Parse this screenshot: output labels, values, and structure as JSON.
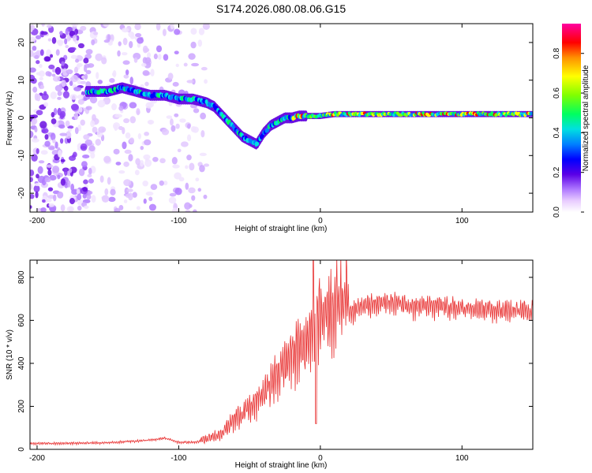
{
  "title": "S174.2026.080.08.06.G15",
  "chart_data": [
    {
      "type": "heatmap",
      "xlabel": "Height of straight line (km)",
      "ylabel": "Frequency (Hz)",
      "xlim": [
        -205,
        150
      ],
      "ylim": [
        -25,
        25
      ],
      "x_ticks": [
        -200,
        -100,
        0,
        100
      ],
      "y_ticks": [
        -20,
        -10,
        0,
        10,
        20
      ],
      "colorbar": {
        "label": "Normalized spectral amplitude",
        "range": [
          0,
          0.95
        ],
        "ticks": [
          0.0,
          0.2,
          0.4,
          0.6,
          0.8
        ]
      },
      "ridge": {
        "x": [
          -165,
          -150,
          -140,
          -130,
          -120,
          -110,
          -100,
          -90,
          -80,
          -75,
          -70,
          -65,
          -60,
          -55,
          -50,
          -45,
          -40,
          -35,
          -30,
          -25,
          -20,
          -15,
          -10,
          0,
          10,
          50,
          100,
          150
        ],
        "freq": [
          7,
          7,
          8,
          7,
          6,
          6,
          5,
          5,
          4,
          3,
          1,
          -1,
          -3,
          -5,
          -6,
          -7,
          -4,
          -2,
          -1,
          0,
          0,
          0.5,
          0.5,
          0.5,
          1,
          1,
          1,
          1
        ]
      }
    },
    {
      "type": "line",
      "xlabel": "Height of straight line (km)",
      "ylabel": "SNR (10 * v/v)",
      "xlim": [
        -205,
        150
      ],
      "ylim": [
        0,
        880
      ],
      "x_ticks": [
        -200,
        -100,
        0,
        100
      ],
      "y_ticks": [
        0,
        200,
        400,
        600,
        800
      ],
      "series": [
        {
          "name": "SNR",
          "color": "#e83030",
          "x": [
            -205,
            -180,
            -150,
            -120,
            -110,
            -100,
            -90,
            -80,
            -70,
            -60,
            -50,
            -40,
            -30,
            -20,
            -10,
            -5,
            0,
            10,
            20,
            30,
            40,
            50,
            60,
            70,
            80,
            100,
            120,
            140,
            150
          ],
          "y": [
            25,
            25,
            28,
            40,
            50,
            30,
            30,
            35,
            60,
            120,
            160,
            220,
            300,
            380,
            420,
            500,
            530,
            580,
            620,
            640,
            650,
            660,
            650,
            640,
            640,
            630,
            620,
            620,
            620
          ]
        }
      ],
      "annotations": [
        {
          "x": -5,
          "y": 880,
          "note": "spike"
        },
        {
          "x": -3,
          "y": 120,
          "note": "dip"
        }
      ]
    }
  ]
}
